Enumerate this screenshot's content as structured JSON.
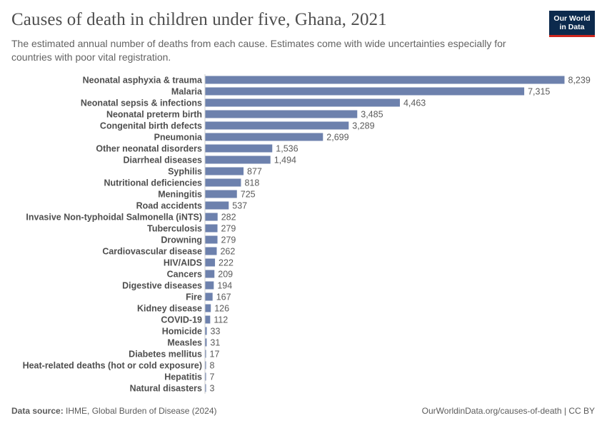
{
  "header": {
    "title": "Causes of death in children under five, Ghana, 2021",
    "subtitle": "The estimated annual number of deaths from each cause. Estimates come with wide uncertainties especially for countries with poor vital registration."
  },
  "logo": {
    "line1": "Our World",
    "line2": "in Data"
  },
  "footer": {
    "source_label": "Data source:",
    "source_text": "IHME, Global Burden of Disease (2024)",
    "url": "OurWorldinData.org/causes-of-death | CC BY"
  },
  "colors": {
    "bar": "#6d81ad",
    "axis": "#cfcfcf"
  },
  "chart_data": {
    "type": "bar",
    "orientation": "horizontal",
    "title": "Causes of death in children under five, Ghana, 2021",
    "xlabel": "",
    "ylabel": "",
    "xlim": [
      0,
      8239
    ],
    "categories": [
      "Neonatal asphyxia & trauma",
      "Malaria",
      "Neonatal sepsis & infections",
      "Neonatal preterm birth",
      "Congenital birth defects",
      "Pneumonia",
      "Other neonatal disorders",
      "Diarrheal diseases",
      "Syphilis",
      "Nutritional deficiencies",
      "Meningitis",
      "Road accidents",
      "Invasive Non-typhoidal Salmonella (iNTS)",
      "Tuberculosis",
      "Drowning",
      "Cardiovascular disease",
      "HIV/AIDS",
      "Cancers",
      "Digestive diseases",
      "Fire",
      "Kidney disease",
      "COVID-19",
      "Homicide",
      "Measles",
      "Diabetes mellitus",
      "Heat-related deaths (hot or cold exposure)",
      "Hepatitis",
      "Natural disasters"
    ],
    "values": [
      8239,
      7315,
      4463,
      3485,
      3289,
      2699,
      1536,
      1494,
      877,
      818,
      725,
      537,
      282,
      279,
      279,
      262,
      222,
      209,
      194,
      167,
      126,
      112,
      33,
      31,
      17,
      8,
      7,
      3
    ],
    "value_labels": [
      "8,239",
      "7,315",
      "4,463",
      "3,485",
      "3,289",
      "2,699",
      "1,536",
      "1,494",
      "877",
      "818",
      "725",
      "537",
      "282",
      "279",
      "279",
      "262",
      "222",
      "209",
      "194",
      "167",
      "126",
      "112",
      "33",
      "31",
      "17",
      "8",
      "7",
      "3"
    ]
  }
}
